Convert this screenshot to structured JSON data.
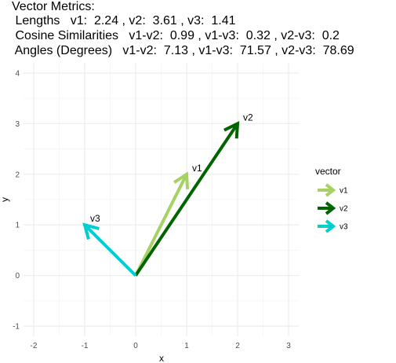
{
  "title": {
    "line1": "Vector Metrics:",
    "line2": " Lengths   v1:  2.24 , v2:  3.61 , v3:  1.41",
    "line3": " Cosine Similarities   v1-v2:  0.99 , v1-v3:  0.32 , v2-v3:  0.2",
    "line4": " Angles (Degrees)   v1-v2:  7.13 , v1-v3:  71.57 , v2-v3:  78.69"
  },
  "chart_data": {
    "type": "vector",
    "xlabel": "x",
    "ylabel": "y",
    "xlim": [
      -2.2,
      3.2
    ],
    "ylim": [
      -1.2,
      4.2
    ],
    "xticks": [
      -2,
      -1,
      0,
      1,
      2,
      3
    ],
    "yticks": [
      -1,
      0,
      1,
      2,
      3,
      4
    ],
    "grid": true,
    "legend": {
      "title": "vector",
      "position": "right"
    },
    "series": [
      {
        "name": "v1",
        "x0": 0,
        "y0": 0,
        "x": 1,
        "y": 2,
        "color": "#a6d263"
      },
      {
        "name": "v2",
        "x0": 0,
        "y0": 0,
        "x": 2,
        "y": 3,
        "color": "#006400"
      },
      {
        "name": "v3",
        "x0": 0,
        "y0": 0,
        "x": -1,
        "y": 1,
        "color": "#00ced1"
      }
    ]
  }
}
